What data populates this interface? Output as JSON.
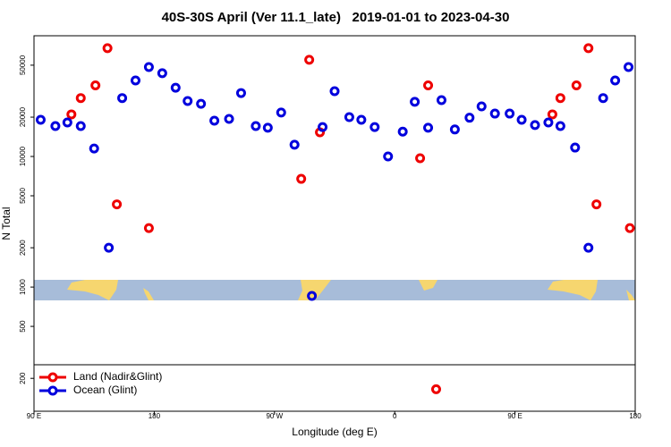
{
  "chart_data": {
    "type": "scatter",
    "title": "40S-30S April (Ver 11.1_late)   2019-01-01 to 2023-04-30",
    "x_label": "Longitude (deg E)",
    "y_label": "N Total",
    "y_log": true,
    "legend": "lower left",
    "xlim": [
      90,
      540
    ],
    "ylim": [
      112,
      84000
    ],
    "xticks": [
      {
        "value": 90,
        "label": "90 E"
      },
      180,
      {
        "value": 270,
        "label": "90 W"
      },
      {
        "value": 360,
        "label": "0"
      },
      {
        "value": 450,
        "label": "90 E"
      },
      {
        "value": 540,
        "label": "180"
      }
    ],
    "yticks": [
      200,
      500,
      1000,
      2000,
      5000,
      10000,
      20000,
      50000
    ],
    "series": [
      {
        "name": "Land (Nadir&Glint)",
        "color": "#ee0000",
        "x": [
          118,
          125,
          136,
          145,
          152,
          176,
          290,
          296,
          304,
          379,
          385,
          391,
          478,
          484,
          496,
          505,
          511,
          536
        ],
        "values": [
          21000,
          28000,
          35000,
          67500,
          4300,
          2830,
          6740,
          55000,
          15300,
          9700,
          35000,
          165,
          21000,
          28000,
          35000,
          67500,
          4300,
          2830
        ]
      },
      {
        "name": "Ocean (Glint)",
        "color": "#0000dd",
        "x": [
          95,
          106,
          115,
          125,
          135,
          146,
          156,
          166,
          176,
          186,
          196,
          205,
          215,
          225,
          236,
          245,
          256,
          265,
          275,
          285,
          298,
          306,
          315,
          326,
          335,
          345,
          355,
          366,
          375,
          385,
          395,
          405,
          416,
          425,
          435,
          446,
          455,
          465,
          475,
          484,
          495,
          505,
          516,
          525,
          535
        ],
        "values": [
          19100,
          17100,
          18200,
          17100,
          11500,
          2000,
          28000,
          38200,
          48400,
          43400,
          33600,
          26600,
          25300,
          18800,
          19400,
          30600,
          17100,
          16600,
          21700,
          12300,
          855,
          16800,
          31600,
          20000,
          19100,
          16800,
          10000,
          15500,
          26200,
          16600,
          27000,
          16100,
          19800,
          24200,
          21300,
          21300,
          19100,
          17400,
          18200,
          17100,
          11700,
          2000,
          28000,
          38200,
          48400
        ]
      }
    ]
  }
}
